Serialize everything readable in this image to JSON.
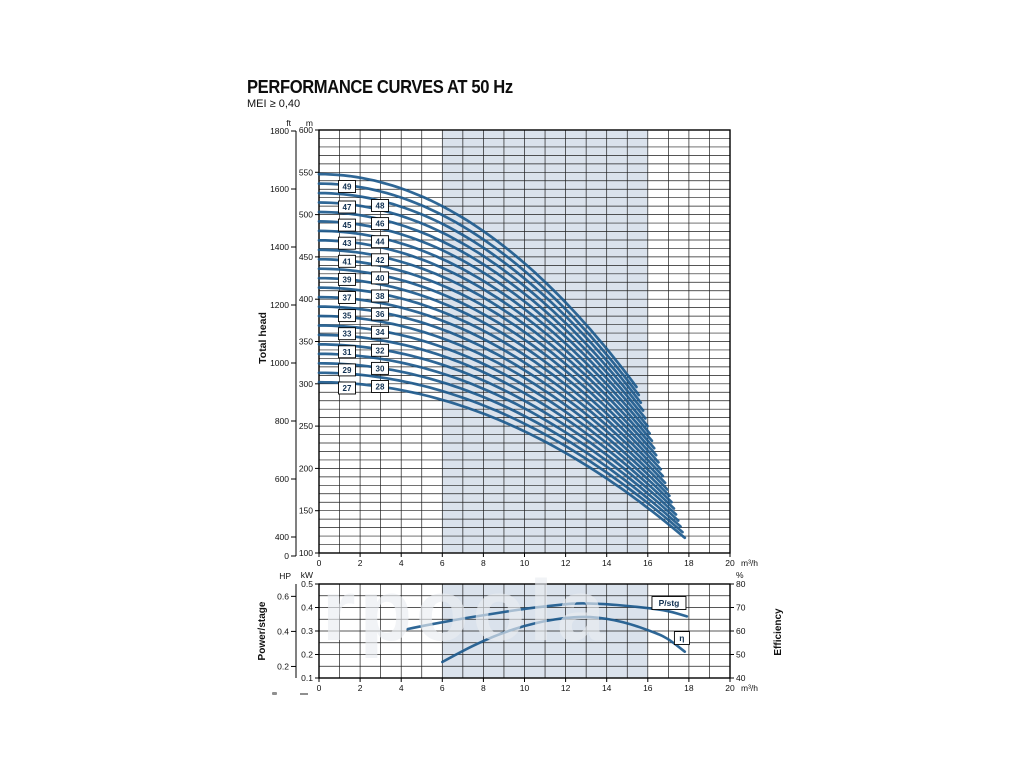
{
  "title": "PERFORMANCE CURVES AT 50 Hz",
  "subtitle": "MEI ≥ 0,40",
  "watermark": "rpoola",
  "colors": {
    "curve": "#1d5a8d",
    "band": "#dae2ec",
    "grid": "#1f1f1f",
    "frame": "#000000",
    "stage_text": "#0f2f50",
    "tick_text": "#111111"
  },
  "chart_data": [
    {
      "type": "line",
      "name": "head-curves",
      "ylabel": "Total head",
      "x_axis": {
        "unit": "m³/h",
        "min": 0,
        "max": 20,
        "major_step": 2,
        "minor_step": 1,
        "major_labels": [
          "0",
          "2",
          "4",
          "6",
          "8",
          "10",
          "12",
          "14",
          "16",
          "18",
          "20"
        ]
      },
      "y_axis_m": {
        "unit": "m",
        "min": 100,
        "max": 600,
        "label_step": 50,
        "grid_step": 10,
        "labels": [
          "600",
          "550",
          "500",
          "450",
          "400",
          "350",
          "300",
          "250",
          "200",
          "150",
          "100"
        ]
      },
      "y_axis_ft": {
        "unit": "ft",
        "labels": [
          "1800",
          "1600",
          "1400",
          "1200",
          "1000",
          "800",
          "600",
          "400",
          "0"
        ]
      },
      "shaded_band_x": [
        6,
        16
      ],
      "stage_head_model": {
        "h0_m_per_stage": 11.18,
        "k": 0.0215,
        "exponent": 2
      },
      "stages": [
        {
          "n": 27,
          "q_end": 17.8
        },
        {
          "n": 28,
          "q_end": 17.69
        },
        {
          "n": 29,
          "q_end": 17.59
        },
        {
          "n": 30,
          "q_end": 17.48
        },
        {
          "n": 31,
          "q_end": 17.37
        },
        {
          "n": 32,
          "q_end": 17.27
        },
        {
          "n": 33,
          "q_end": 17.16
        },
        {
          "n": 34,
          "q_end": 17.05
        },
        {
          "n": 35,
          "q_end": 16.95
        },
        {
          "n": 36,
          "q_end": 16.84
        },
        {
          "n": 37,
          "q_end": 16.73
        },
        {
          "n": 38,
          "q_end": 16.63
        },
        {
          "n": 39,
          "q_end": 16.52
        },
        {
          "n": 40,
          "q_end": 16.41
        },
        {
          "n": 41,
          "q_end": 16.31
        },
        {
          "n": 42,
          "q_end": 16.2
        },
        {
          "n": 43,
          "q_end": 16.09
        },
        {
          "n": 44,
          "q_end": 15.99
        },
        {
          "n": 45,
          "q_end": 15.88
        },
        {
          "n": 46,
          "q_end": 15.77
        },
        {
          "n": 47,
          "q_end": 15.66
        },
        {
          "n": 48,
          "q_end": 15.56
        },
        {
          "n": 49,
          "q_end": 15.45
        }
      ]
    },
    {
      "type": "line",
      "name": "power-efficiency",
      "ylabel_left": "Power/stage",
      "ylabel_right": "Efficiency",
      "x_axis": {
        "unit": "m³/h",
        "min": 0,
        "max": 20,
        "major_step": 2,
        "minor_step": 1,
        "major_labels": [
          "0",
          "2",
          "4",
          "6",
          "8",
          "10",
          "12",
          "14",
          "16",
          "18",
          "20"
        ]
      },
      "y_axis_kw": {
        "unit": "kW",
        "min": 0.1,
        "max": 0.5,
        "grid_step": 0.05,
        "labels": [
          "0.5",
          "0.4",
          "0.3",
          "0.2",
          "0.1"
        ]
      },
      "y_axis_hp": {
        "unit": "HP",
        "labels": [
          "0.6",
          "0.4",
          "0.2"
        ]
      },
      "y_axis_pct": {
        "unit": "%",
        "min": 40,
        "max": 80,
        "label_step": 10,
        "labels": [
          "80",
          "70",
          "60",
          "50",
          "40"
        ]
      },
      "shaded_band_x": [
        6,
        16
      ],
      "series": [
        {
          "name": "P/stg",
          "axis": "kW",
          "points": [
            [
              4.3,
              0.308
            ],
            [
              5,
              0.321
            ],
            [
              6,
              0.337
            ],
            [
              7,
              0.353
            ],
            [
              8,
              0.367
            ],
            [
              9,
              0.381
            ],
            [
              10,
              0.394
            ],
            [
              11,
              0.405
            ],
            [
              12,
              0.414
            ],
            [
              12.6,
              0.418
            ],
            [
              13.4,
              0.417
            ],
            [
              14,
              0.414
            ],
            [
              15,
              0.407
            ],
            [
              16,
              0.398
            ],
            [
              17,
              0.386
            ],
            [
              17.9,
              0.362
            ]
          ],
          "label_at": [
            17.03,
            0.419
          ]
        },
        {
          "name": "η",
          "axis": "%",
          "points": [
            [
              6,
              46.8
            ],
            [
              7,
              51.6
            ],
            [
              8,
              55.8
            ],
            [
              9,
              59.4
            ],
            [
              10,
              62.2
            ],
            [
              11,
              64.3
            ],
            [
              12,
              65.6
            ],
            [
              12.8,
              66.1
            ],
            [
              13.6,
              65.7
            ],
            [
              14.4,
              64.6
            ],
            [
              15.2,
              62.8
            ],
            [
              16,
              60.4
            ],
            [
              16.9,
              57.4
            ],
            [
              17.8,
              51.2
            ]
          ],
          "label_at": [
            17.66,
            57.0
          ]
        }
      ]
    }
  ]
}
